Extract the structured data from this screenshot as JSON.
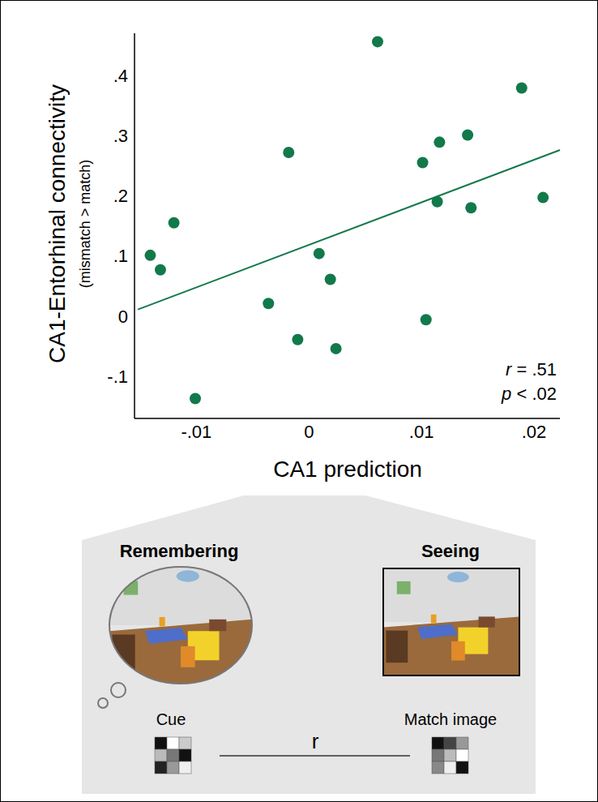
{
  "chart_data": {
    "type": "scatter",
    "x_label": "CA1 prediction",
    "y_label": "CA1-Entorhinal connectivity",
    "y_sublabel": "(mismatch > match)",
    "color": "#12794b",
    "x": [
      -0.0141,
      -0.0132,
      -0.012,
      -0.0101,
      -0.0036,
      -0.0018,
      -0.001,
      0.0009,
      0.0019,
      0.0024,
      0.0061,
      0.0101,
      0.0104,
      0.0116,
      0.0114,
      0.0141,
      0.0144,
      0.0189,
      0.0208
    ],
    "values": [
      0.101,
      0.077,
      0.155,
      -0.137,
      0.021,
      0.272,
      -0.039,
      0.104,
      0.061,
      -0.054,
      0.456,
      0.255,
      -0.006,
      0.289,
      0.19,
      0.301,
      0.18,
      0.379,
      0.197
    ],
    "fit_line": {
      "x": [
        -0.0152,
        0.0223
      ],
      "y": [
        0.011,
        0.276
      ]
    },
    "xlim": [
      -0.0155,
      0.0223
    ],
    "ylim": [
      -0.17,
      0.47
    ],
    "xticks": [
      {
        "value": -0.01,
        "label": "-.01"
      },
      0,
      {
        "value": 0.01,
        "label": ".01"
      },
      {
        "value": 0.02,
        "label": ".02"
      }
    ],
    "yticks": [
      {
        "value": -0.1,
        "label": "-.1"
      },
      0,
      {
        "value": 0.1,
        "label": ".1"
      },
      {
        "value": 0.2,
        "label": ".2"
      },
      {
        "value": 0.3,
        "label": ".3"
      },
      {
        "value": 0.4,
        "label": ".4"
      }
    ],
    "annotations": [
      "r = .51",
      "p < .02"
    ],
    "grid": false
  },
  "illustration": {
    "left_title": "Remembering",
    "right_title": "Seeing",
    "left_caption": "Cue",
    "right_caption": "Match image",
    "link_label": "r"
  }
}
